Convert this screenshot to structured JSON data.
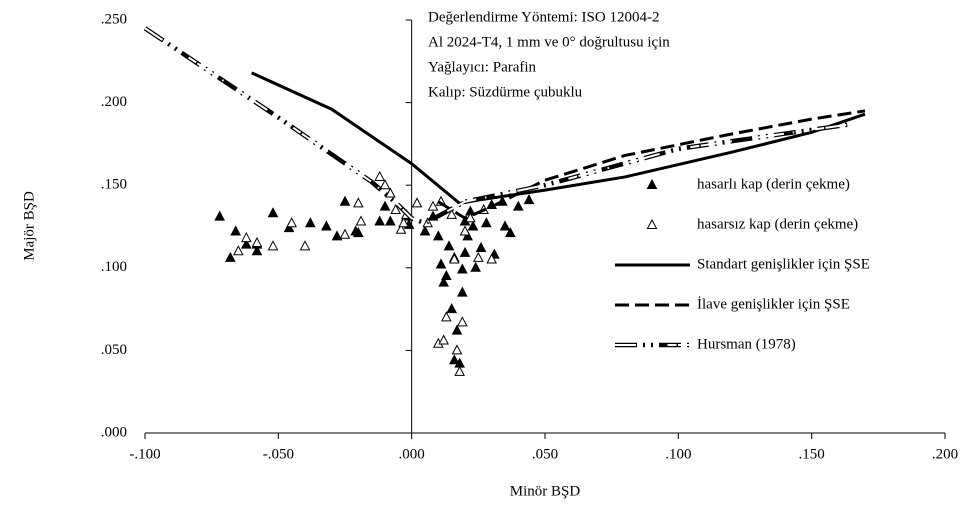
{
  "chart_data": {
    "type": "scatter",
    "annotations": [
      "Değerlendirme Yöntemi: ISO 12004-2",
      "Al 2024-T4, 1 mm ve 0° doğrultusu için",
      "Yağlayıcı: Parafin",
      "Kalıp: Süzdürme çubuklu"
    ],
    "xlabel": "Minör BŞD",
    "ylabel": "Majör BŞD",
    "xlim": [
      -0.1,
      0.2
    ],
    "ylim": [
      0,
      0.25
    ],
    "xticks": [
      {
        "value": -0.1,
        "label": "-.100"
      },
      {
        "value": -0.05,
        "label": "-.050"
      },
      {
        "value": 0,
        "label": ".000"
      },
      {
        "value": 0.05,
        "label": ".050"
      },
      {
        "value": 0.1,
        "label": ".100"
      },
      {
        "value": 0.15,
        "label": ".150"
      },
      {
        "value": 0.2,
        "label": ".200"
      }
    ],
    "yticks": [
      {
        "value": 0,
        "label": ".000"
      },
      {
        "value": 0.05,
        "label": ".050"
      },
      {
        "value": 0.1,
        "label": ".100"
      },
      {
        "value": 0.15,
        "label": ".150"
      },
      {
        "value": 0.2,
        "label": ".200"
      },
      {
        "value": 0.25,
        "label": ".250"
      }
    ],
    "series": [
      {
        "name": "hasarlı kap (derin çekme)",
        "color": "#000",
        "marker": "filled-triangle",
        "x": [
          -0.072,
          -0.068,
          -0.066,
          -0.062,
          -0.058,
          -0.058,
          -0.052,
          -0.046,
          -0.038,
          -0.032,
          -0.028,
          -0.025,
          -0.021,
          -0.02,
          -0.012,
          -0.01,
          -0.008,
          -0.002,
          -0.001,
          0.005,
          0.008,
          0.01,
          0.011,
          0.012,
          0.013,
          0.014,
          0.015,
          0.016,
          0.016,
          0.017,
          0.018,
          0.019,
          0.019,
          0.02,
          0.02,
          0.021,
          0.022,
          0.023,
          0.024,
          0.026,
          0.028,
          0.03,
          0.031,
          0.034,
          0.035,
          0.037,
          0.04,
          0.044
        ],
        "values": [
          0.131,
          0.106,
          0.122,
          0.114,
          0.11,
          0.114,
          0.133,
          0.124,
          0.127,
          0.125,
          0.119,
          0.14,
          0.122,
          0.121,
          0.128,
          0.137,
          0.128,
          0.131,
          0.126,
          0.122,
          0.131,
          0.119,
          0.102,
          0.091,
          0.095,
          0.113,
          0.075,
          0.106,
          0.044,
          0.062,
          0.042,
          0.099,
          0.085,
          0.109,
          0.128,
          0.119,
          0.134,
          0.125,
          0.1,
          0.112,
          0.127,
          0.138,
          0.108,
          0.14,
          0.125,
          0.121,
          0.137,
          0.141
        ]
      },
      {
        "name": "hasarsız kap (derin çekme)",
        "color": "#000",
        "marker": "hollow-triangle",
        "x": [
          -0.065,
          -0.062,
          -0.058,
          -0.052,
          -0.045,
          -0.04,
          -0.025,
          -0.02,
          -0.019,
          -0.012,
          -0.01,
          -0.008,
          -0.006,
          -0.004,
          -0.003,
          -0.002,
          0.002,
          0.006,
          0.008,
          0.01,
          0.011,
          0.012,
          0.013,
          0.015,
          0.016,
          0.017,
          0.018,
          0.019,
          0.02,
          0.022,
          0.025,
          0.027,
          0.03
        ],
        "values": [
          0.11,
          0.118,
          0.115,
          0.113,
          0.127,
          0.113,
          0.12,
          0.139,
          0.128,
          0.155,
          0.15,
          0.145,
          0.135,
          0.123,
          0.127,
          0.132,
          0.139,
          0.127,
          0.137,
          0.054,
          0.14,
          0.056,
          0.07,
          0.132,
          0.105,
          0.05,
          0.037,
          0.067,
          0.122,
          0.13,
          0.106,
          0.135,
          0.105
        ]
      },
      {
        "name": "Standart genişlikler için ŞSE",
        "color": "#000",
        "marker": "solid-line",
        "x": [
          -0.06,
          -0.03,
          0,
          0.018,
          0.025,
          0.05,
          0.08,
          0.12,
          0.15,
          0.17
        ],
        "values": [
          0.218,
          0.196,
          0.163,
          0.139,
          0.141,
          0.147,
          0.155,
          0.17,
          0.182,
          0.193
        ]
      },
      {
        "name": "İlave genişlikler için ŞSE",
        "color": "#000",
        "marker": "dashed-line",
        "x": [
          0.01,
          0.02,
          0.03,
          0.05,
          0.08,
          0.12,
          0.15,
          0.17
        ],
        "values": [
          0.14,
          0.13,
          0.137,
          0.153,
          0.168,
          0.181,
          0.19,
          0.195
        ]
      },
      {
        "name": "Hursman (1978)",
        "color": "#000",
        "marker": "double-dashdot-line",
        "x": [
          -0.1,
          -0.05,
          -0.015,
          -0.005,
          0,
          0.005,
          0.02,
          0.05,
          0.1,
          0.165
        ],
        "values": [
          0.245,
          0.191,
          0.152,
          0.138,
          0.13,
          0.127,
          0.14,
          0.15,
          0.172,
          0.187
        ]
      }
    ]
  }
}
